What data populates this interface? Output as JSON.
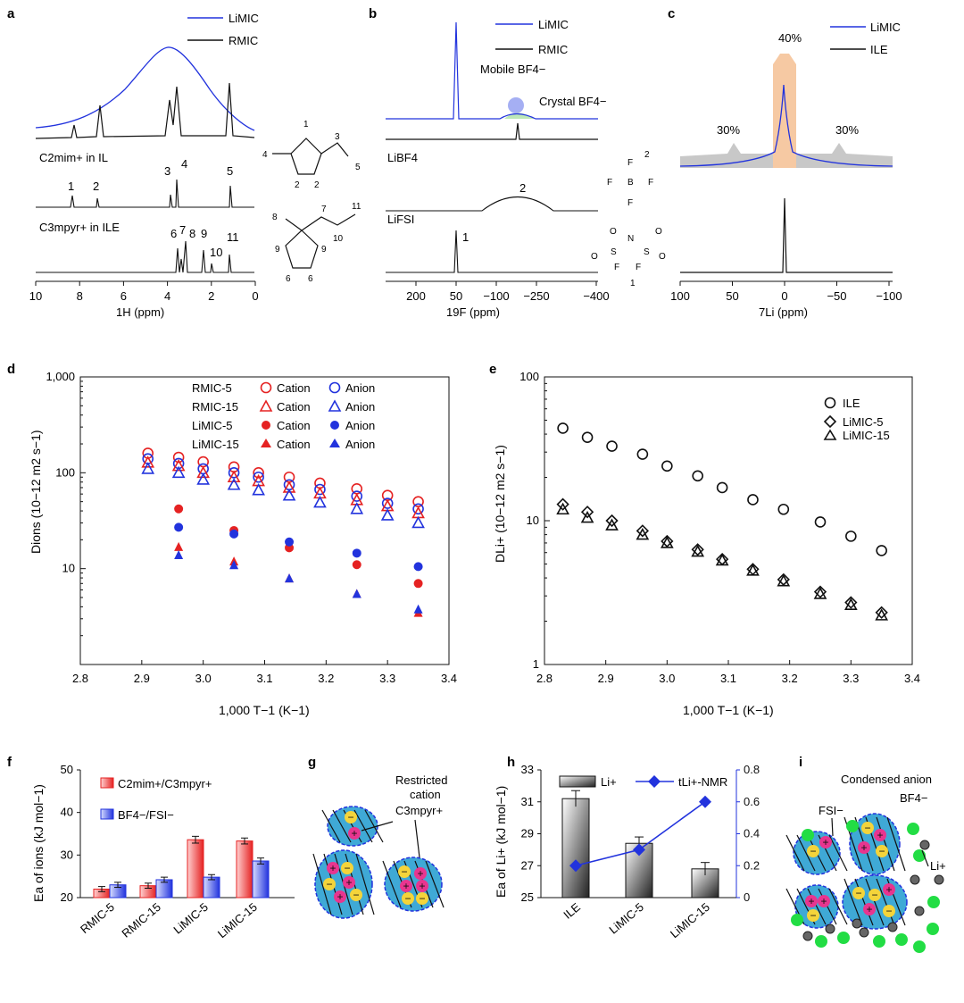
{
  "panel_labels": [
    "a",
    "b",
    "c",
    "d",
    "e",
    "f",
    "g",
    "h",
    "i"
  ],
  "colors": {
    "blue": "#2233dd",
    "red": "#e52222",
    "black": "#111111",
    "orange": "#f6c9a3",
    "gray": "#c8c8c8",
    "cyan": "#3fa9d6",
    "magenta": "#e8358f",
    "yellow": "#f4d43a",
    "green": "#22dd44"
  },
  "panel_a": {
    "legend": [
      "LiMIC",
      "RMIC"
    ],
    "trace1_label": "C2mim+ in IL",
    "trace2_label": "C3mpyr+ in ILE",
    "peaks_trace1": [
      "1",
      "2",
      "3",
      "4",
      "5"
    ],
    "peaks_trace2": [
      "6",
      "7",
      "8",
      "9",
      "10",
      "11"
    ],
    "xlabel": "1H (ppm)",
    "xticks": [
      "10",
      "8",
      "6",
      "4",
      "2",
      "0"
    ],
    "struct1_numbers": [
      "1",
      "2",
      "2",
      "3",
      "4",
      "5"
    ],
    "struct2_numbers": [
      "7",
      "8",
      "9",
      "9",
      "6",
      "6",
      "10",
      "11"
    ]
  },
  "panel_b": {
    "legend": [
      "LiMIC",
      "RMIC"
    ],
    "annot_mobile": "Mobile BF4−",
    "annot_crystal": "Crystal BF4−",
    "trace1_label": "LiBF4",
    "trace2_label": "LiFSI",
    "peak_bf4": "2",
    "peak_fsi": "1",
    "xlabel": "19F (ppm)",
    "xticks": [
      "200",
      "50",
      "−100",
      "−250",
      "−400"
    ],
    "bf4_atoms": [
      "F",
      "F",
      "B",
      "F",
      "F",
      "2"
    ],
    "fsi_atoms": [
      "O",
      "O",
      "S",
      "N",
      "S",
      "O",
      "O",
      "F",
      "F",
      "1"
    ]
  },
  "panel_c": {
    "legend": [
      "LiMIC",
      "ILE"
    ],
    "pct_center": "40%",
    "pct_left": "30%",
    "pct_right": "30%",
    "xlabel": "7Li (ppm)",
    "xticks": [
      "100",
      "50",
      "0",
      "−50",
      "−100"
    ]
  },
  "chart_data": [
    {
      "panel": "d",
      "type": "scatter",
      "xlabel": "1,000 T−1 (K−1)",
      "ylabel": "Dions (10−12 m2 s−1)",
      "xlim": [
        2.8,
        3.4
      ],
      "ylim": [
        1,
        1000
      ],
      "yscale": "log",
      "xticks": [
        "2.8",
        "2.9",
        "3.0",
        "3.1",
        "3.2",
        "3.3",
        "3.4"
      ],
      "yticks": [
        "10",
        "100",
        "1,000"
      ],
      "legend_header": [
        "RMIC-5",
        "RMIC-15",
        "LiMIC-5",
        "LiMIC-15"
      ],
      "legend_cation": "Cation",
      "legend_anion": "Anion",
      "series": [
        {
          "name": "RMIC-5 Cation",
          "marker": "circle-open",
          "color": "red",
          "x": [
            2.91,
            2.96,
            3.0,
            3.05,
            3.09,
            3.14,
            3.19,
            3.25,
            3.3,
            3.35
          ],
          "y": [
            160,
            145,
            130,
            115,
            100,
            90,
            78,
            68,
            58,
            50
          ]
        },
        {
          "name": "RMIC-5 Anion",
          "marker": "circle-open",
          "color": "blue",
          "x": [
            2.91,
            2.96,
            3.0,
            3.05,
            3.09,
            3.14,
            3.19,
            3.25,
            3.3,
            3.35
          ],
          "y": [
            140,
            125,
            110,
            100,
            90,
            75,
            67,
            57,
            48,
            42
          ]
        },
        {
          "name": "RMIC-15 Cation",
          "marker": "triangle-open",
          "color": "red",
          "x": [
            2.91,
            2.96,
            3.0,
            3.05,
            3.09,
            3.14,
            3.19,
            3.25,
            3.3,
            3.35
          ],
          "y": [
            128,
            118,
            100,
            90,
            82,
            70,
            61,
            52,
            45,
            38
          ]
        },
        {
          "name": "RMIC-15 Anion",
          "marker": "triangle-open",
          "color": "blue",
          "x": [
            2.91,
            2.96,
            3.0,
            3.05,
            3.09,
            3.14,
            3.19,
            3.25,
            3.3,
            3.35
          ],
          "y": [
            110,
            100,
            85,
            75,
            66,
            58,
            49,
            42,
            36,
            30
          ]
        },
        {
          "name": "LiMIC-5 Cation",
          "marker": "circle-filled",
          "color": "red",
          "x": [
            2.96,
            3.05,
            3.14,
            3.25,
            3.35
          ],
          "y": [
            42,
            25,
            16.5,
            11,
            7
          ]
        },
        {
          "name": "LiMIC-5 Anion",
          "marker": "circle-filled",
          "color": "blue",
          "x": [
            2.96,
            3.05,
            3.14,
            3.25,
            3.35
          ],
          "y": [
            27,
            23,
            19,
            14.5,
            10.5
          ]
        },
        {
          "name": "LiMIC-15 Cation",
          "marker": "triangle-filled",
          "color": "red",
          "x": [
            2.96,
            3.05,
            3.14,
            3.25,
            3.35
          ],
          "y": [
            17,
            12,
            8,
            5.5,
            3.5
          ]
        },
        {
          "name": "LiMIC-15 Anion",
          "marker": "triangle-filled",
          "color": "blue",
          "x": [
            2.96,
            3.05,
            3.14,
            3.25,
            3.35
          ],
          "y": [
            14,
            11,
            8,
            5.5,
            3.8
          ]
        }
      ]
    },
    {
      "panel": "e",
      "type": "scatter",
      "xlabel": "1,000 T−1 (K−1)",
      "ylabel": "DLi+ (10−12 m2 s−1)",
      "xlim": [
        2.8,
        3.4
      ],
      "ylim": [
        1,
        100
      ],
      "yscale": "log",
      "xticks": [
        "2.8",
        "2.9",
        "3.0",
        "3.1",
        "3.2",
        "3.3",
        "3.4"
      ],
      "yticks": [
        "1",
        "10",
        "100"
      ],
      "series": [
        {
          "name": "ILE",
          "marker": "circle-open",
          "x": [
            2.83,
            2.87,
            2.91,
            2.96,
            3.0,
            3.05,
            3.09,
            3.14,
            3.19,
            3.25,
            3.3,
            3.35
          ],
          "y": [
            44,
            38,
            33,
            29,
            24,
            20.5,
            17,
            14,
            12,
            9.8,
            7.8,
            6.2
          ]
        },
        {
          "name": "LiMIC-5",
          "marker": "diamond-open",
          "x": [
            2.83,
            2.87,
            2.91,
            2.96,
            3.0,
            3.05,
            3.09,
            3.14,
            3.19,
            3.25,
            3.3,
            3.35
          ],
          "y": [
            13,
            11.5,
            10,
            8.5,
            7.2,
            6.3,
            5.4,
            4.6,
            3.9,
            3.2,
            2.7,
            2.3
          ]
        },
        {
          "name": "LiMIC-15",
          "marker": "triangle-open",
          "x": [
            2.83,
            2.87,
            2.91,
            2.96,
            3.0,
            3.05,
            3.09,
            3.14,
            3.19,
            3.25,
            3.3,
            3.35
          ],
          "y": [
            12,
            10.5,
            9.3,
            8,
            7,
            6.1,
            5.3,
            4.5,
            3.8,
            3.1,
            2.6,
            2.2
          ]
        }
      ]
    },
    {
      "panel": "f",
      "type": "bar",
      "ylabel": "Ea of ions (kJ mol−1)",
      "ylim": [
        20,
        50
      ],
      "yticks": [
        "20",
        "30",
        "40",
        "50"
      ],
      "categories": [
        "RMIC-5",
        "RMIC-15",
        "LiMIC-5",
        "LiMIC-15"
      ],
      "series": [
        {
          "name": "C2mim+/C3mpyr+",
          "color": "red",
          "values": [
            22.0,
            22.8,
            33.6,
            33.3
          ],
          "errors": [
            0.6,
            0.6,
            0.8,
            0.7
          ]
        },
        {
          "name": "BF4−/FSI−",
          "color": "blue",
          "values": [
            23.0,
            24.2,
            24.8,
            28.6
          ],
          "errors": [
            0.6,
            0.6,
            0.6,
            0.7
          ]
        }
      ]
    },
    {
      "panel": "h",
      "type": "bar",
      "ylabel": "Ea of Li+ (kJ mol−1)",
      "ylim": [
        25,
        33
      ],
      "yticks": [
        "25",
        "27",
        "29",
        "31",
        "33"
      ],
      "y2lim": [
        0,
        0.8
      ],
      "y2ticks": [
        "0",
        "0.2",
        "0.4",
        "0.6",
        "0.8"
      ],
      "categories": [
        "ILE",
        "LiMIC-5",
        "LiMIC-15"
      ],
      "series": [
        {
          "name": "Li+",
          "type": "bar",
          "values": [
            31.2,
            28.4,
            26.8
          ],
          "errors": [
            0.5,
            0.4,
            0.4
          ]
        },
        {
          "name": "tLi+-NMR",
          "type": "line",
          "axis": "right",
          "values": [
            0.2,
            0.3,
            0.6
          ]
        }
      ]
    }
  ],
  "panel_g": {
    "title_line1": "Restricted",
    "title_line2": "cation",
    "title_line3": "C3mpyr+"
  },
  "panel_i": {
    "title": "Condensed anion",
    "label_fsi": "FSI−",
    "label_bf4": "BF4−",
    "label_li": "Li+"
  }
}
